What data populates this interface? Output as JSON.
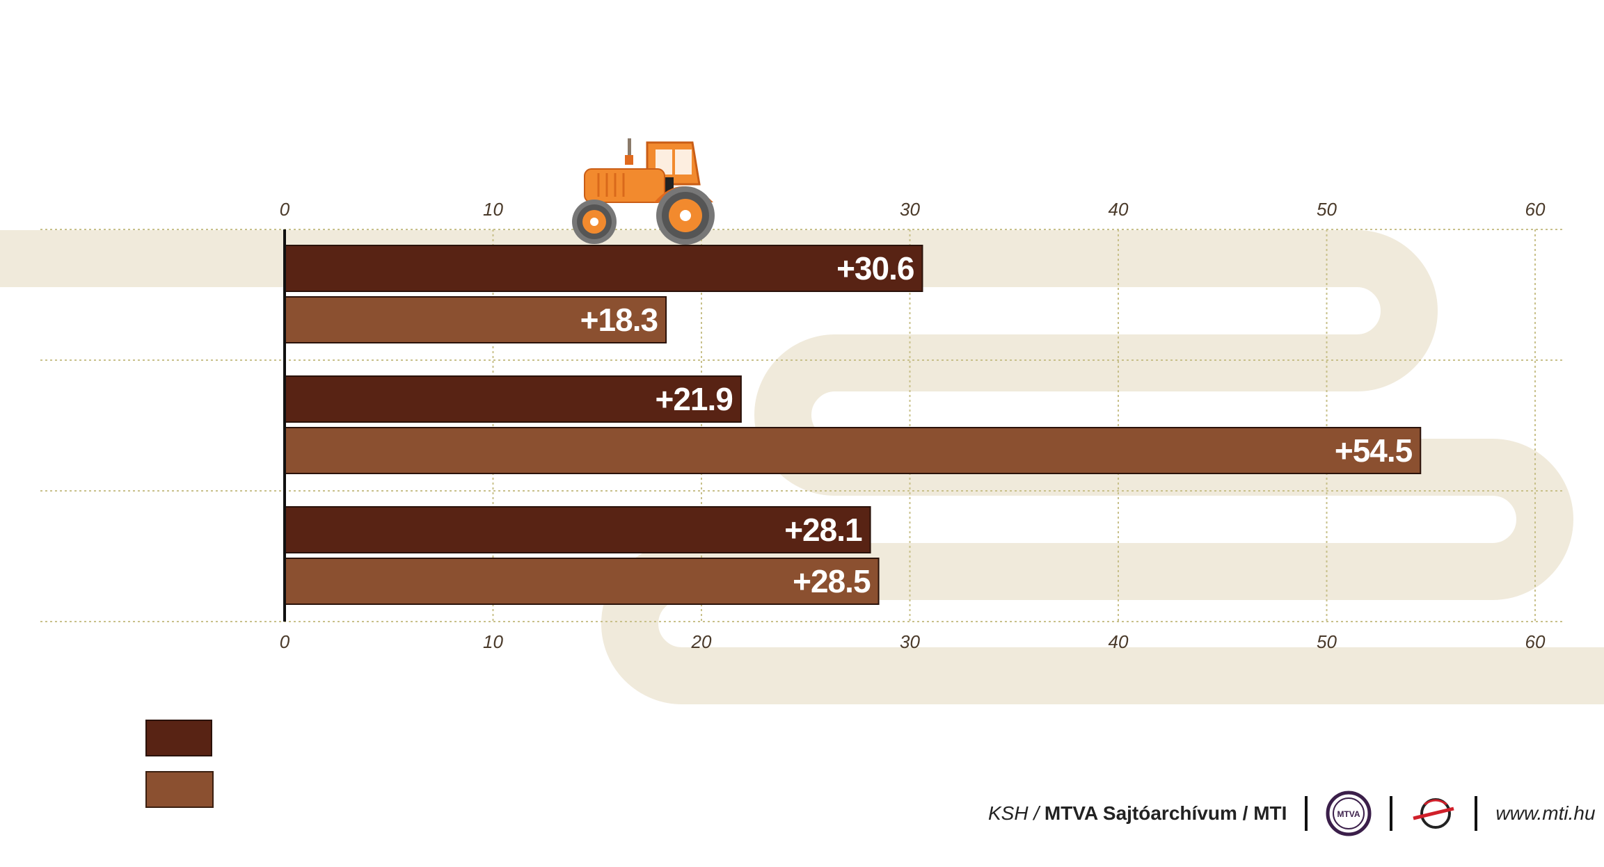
{
  "chart_data": {
    "type": "bar",
    "orientation": "horizontal",
    "xlim": [
      0,
      60
    ],
    "ticks": [
      "0",
      "10",
      "20",
      "30",
      "40",
      "50",
      "60"
    ],
    "series": [
      {
        "values": [
          30.6,
          21.9,
          28.1
        ],
        "labels": [
          "+30.6",
          "+21.9",
          "+28.1"
        ],
        "color": "#582314"
      },
      {
        "values": [
          18.3,
          54.5,
          28.5
        ],
        "labels": [
          "+18.3",
          "+54.5",
          "+28.5"
        ],
        "color": "#8b5030"
      }
    ],
    "grid": true,
    "legend": "bottom-left"
  },
  "colors": {
    "track": "#f0eadb",
    "grid": "#c8c08a",
    "axis": "#111111",
    "tractor": "#f28a2e"
  },
  "footer": {
    "source_prefix": "KSH / ",
    "source_bold": "MTVA Sajtóarchívum / MTI",
    "mtva_logo_text": "MTVA",
    "url": "www.mti.hu"
  }
}
